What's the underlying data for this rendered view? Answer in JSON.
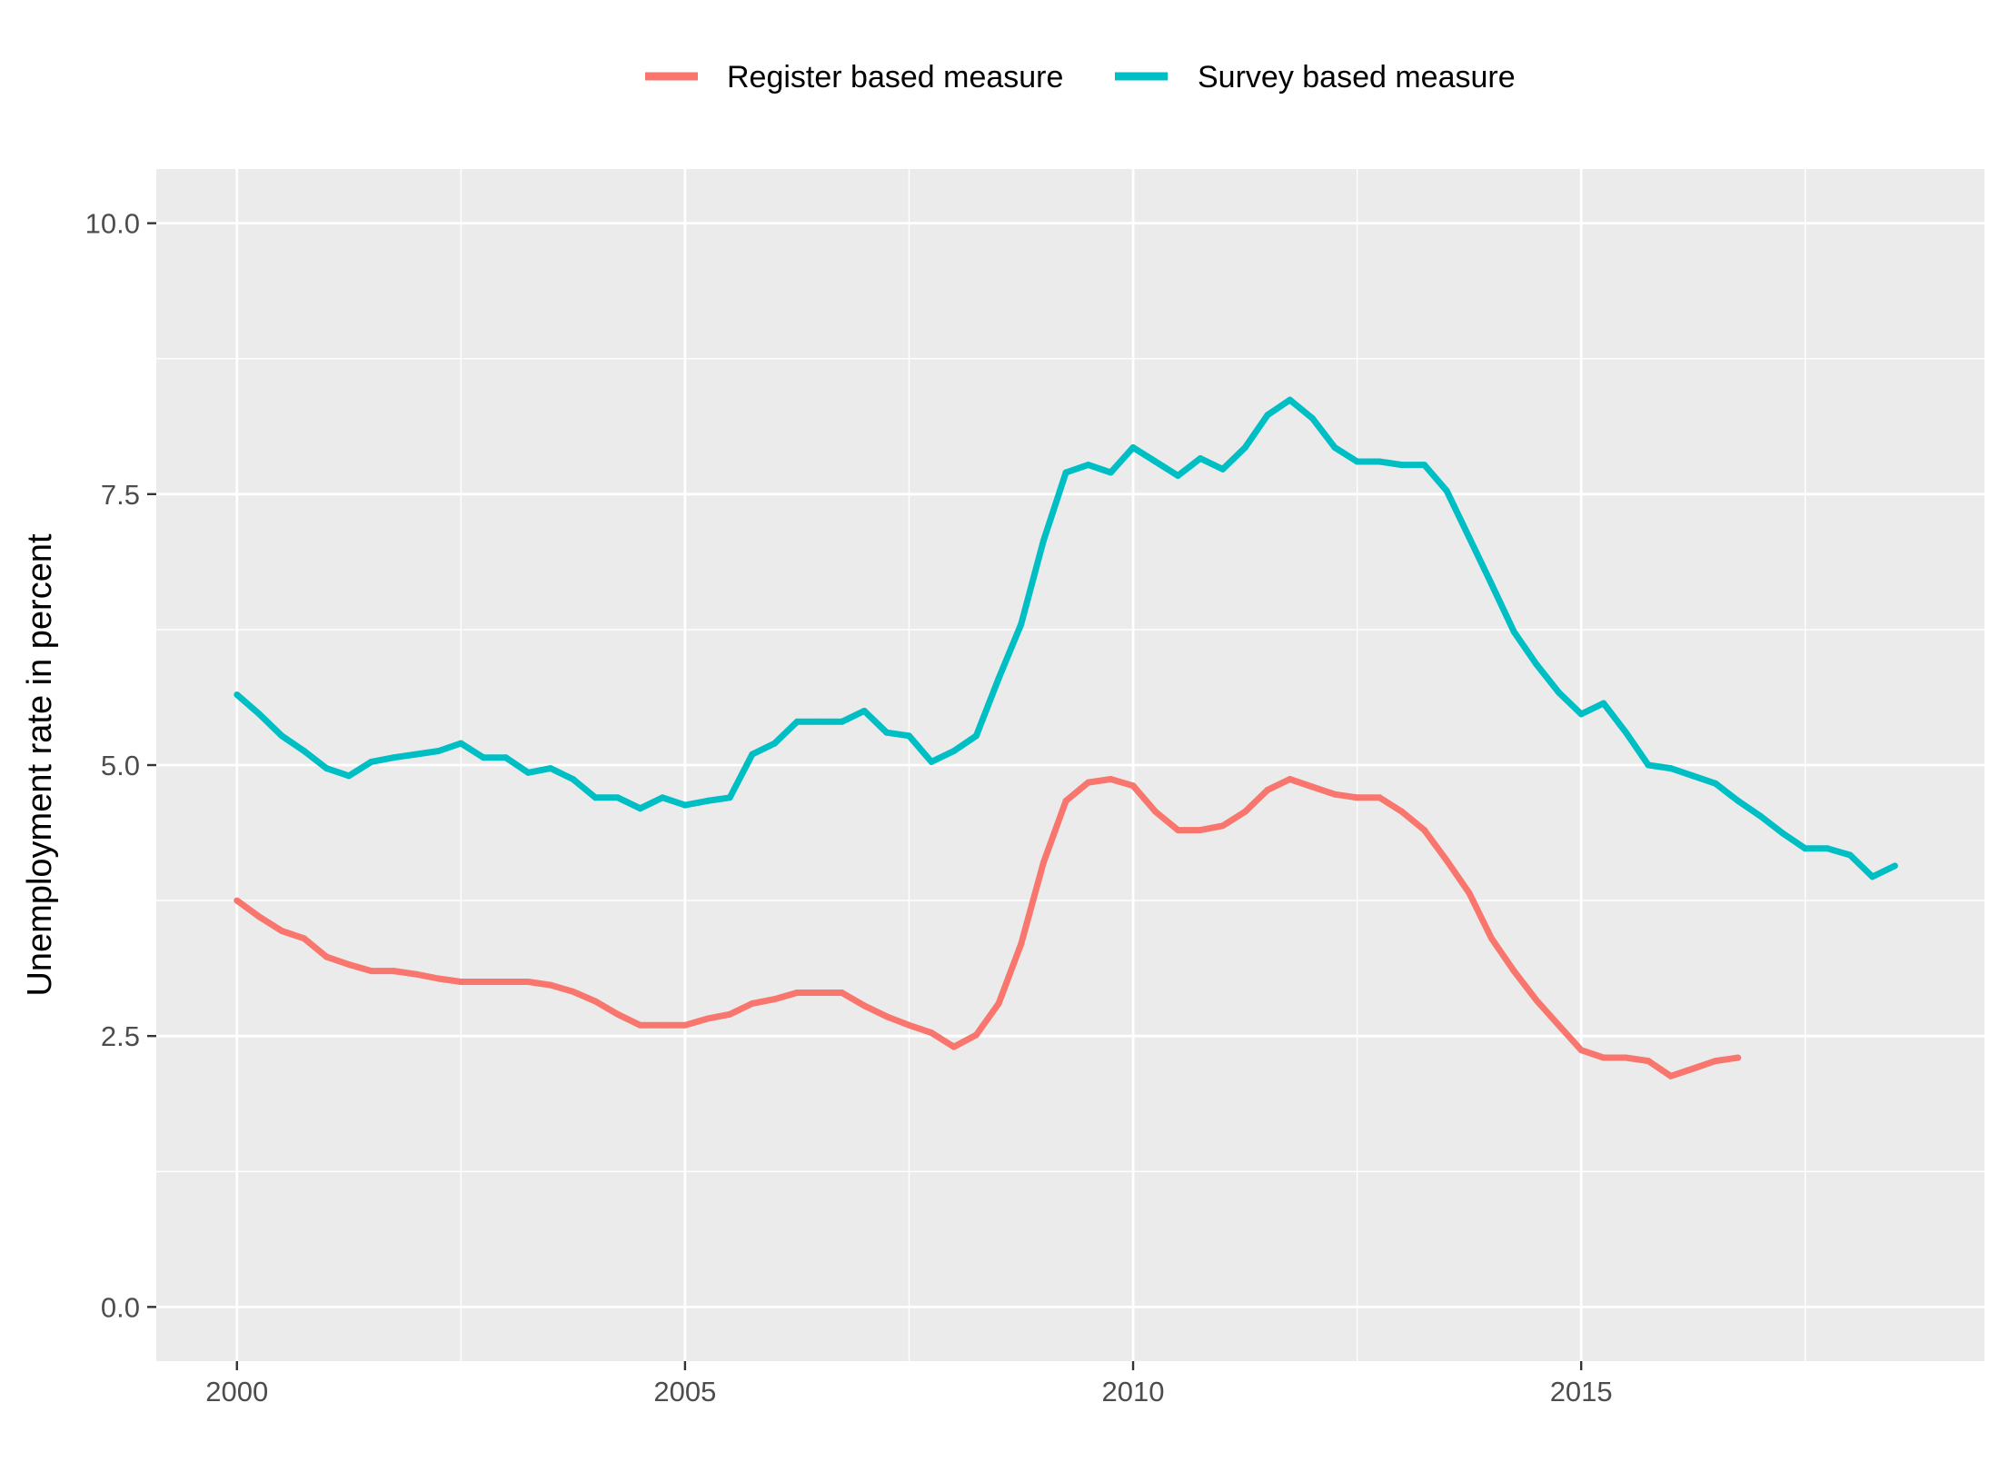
{
  "chart_data": {
    "type": "line",
    "title": "",
    "xlabel": "",
    "ylabel": "Unemployment rate in percent",
    "xlim": [
      1999.1,
      2019.5
    ],
    "ylim": [
      -0.5,
      10.5
    ],
    "x_ticks": [
      2000,
      2005,
      2010,
      2015
    ],
    "x_tick_labels": [
      "2000",
      "2005",
      "2010",
      "2015"
    ],
    "y_ticks": [
      0,
      2.5,
      5,
      7.5,
      10
    ],
    "y_tick_labels": [
      "0.0",
      "2.5",
      "5.0",
      "7.5",
      "10.0"
    ],
    "grid": true,
    "legend_position": "top",
    "series": [
      {
        "name": "Register based measure",
        "color": "#F8766D",
        "points": [
          [
            2000.0,
            3.75
          ],
          [
            2000.25,
            3.6
          ],
          [
            2000.5,
            3.47
          ],
          [
            2000.75,
            3.4
          ],
          [
            2001.0,
            3.23
          ],
          [
            2001.25,
            3.16
          ],
          [
            2001.5,
            3.1
          ],
          [
            2001.75,
            3.1
          ],
          [
            2002.0,
            3.07
          ],
          [
            2002.25,
            3.03
          ],
          [
            2002.5,
            3.0
          ],
          [
            2002.75,
            3.0
          ],
          [
            2003.0,
            3.0
          ],
          [
            2003.25,
            3.0
          ],
          [
            2003.5,
            2.97
          ],
          [
            2003.75,
            2.91
          ],
          [
            2004.0,
            2.82
          ],
          [
            2004.25,
            2.7
          ],
          [
            2004.5,
            2.6
          ],
          [
            2004.75,
            2.6
          ],
          [
            2005.0,
            2.6
          ],
          [
            2005.25,
            2.66
          ],
          [
            2005.5,
            2.7
          ],
          [
            2005.75,
            2.8
          ],
          [
            2006.0,
            2.84
          ],
          [
            2006.25,
            2.9
          ],
          [
            2006.5,
            2.9
          ],
          [
            2006.75,
            2.9
          ],
          [
            2007.0,
            2.78
          ],
          [
            2007.25,
            2.68
          ],
          [
            2007.5,
            2.6
          ],
          [
            2007.75,
            2.53
          ],
          [
            2008.0,
            2.4
          ],
          [
            2008.25,
            2.51
          ],
          [
            2008.5,
            2.8
          ],
          [
            2008.75,
            3.35
          ],
          [
            2009.0,
            4.1
          ],
          [
            2009.25,
            4.67
          ],
          [
            2009.5,
            4.84
          ],
          [
            2009.75,
            4.87
          ],
          [
            2010.0,
            4.81
          ],
          [
            2010.25,
            4.57
          ],
          [
            2010.5,
            4.4
          ],
          [
            2010.75,
            4.4
          ],
          [
            2011.0,
            4.44
          ],
          [
            2011.25,
            4.57
          ],
          [
            2011.5,
            4.77
          ],
          [
            2011.75,
            4.87
          ],
          [
            2012.0,
            4.8
          ],
          [
            2012.25,
            4.73
          ],
          [
            2012.5,
            4.7
          ],
          [
            2012.75,
            4.7
          ],
          [
            2013.0,
            4.57
          ],
          [
            2013.25,
            4.4
          ],
          [
            2013.5,
            4.12
          ],
          [
            2013.75,
            3.82
          ],
          [
            2014.0,
            3.4
          ],
          [
            2014.25,
            3.1
          ],
          [
            2014.5,
            2.83
          ],
          [
            2014.75,
            2.6
          ],
          [
            2015.0,
            2.37
          ],
          [
            2015.25,
            2.3
          ],
          [
            2015.5,
            2.3
          ],
          [
            2015.75,
            2.27
          ],
          [
            2016.0,
            2.13
          ],
          [
            2016.25,
            2.2
          ],
          [
            2016.5,
            2.27
          ],
          [
            2016.75,
            2.3
          ]
        ]
      },
      {
        "name": "Survey based measure",
        "color": "#00BFC4",
        "points": [
          [
            2000.0,
            5.65
          ],
          [
            2000.25,
            5.47
          ],
          [
            2000.5,
            5.27
          ],
          [
            2000.75,
            5.13
          ],
          [
            2001.0,
            4.97
          ],
          [
            2001.25,
            4.9
          ],
          [
            2001.5,
            5.03
          ],
          [
            2001.75,
            5.07
          ],
          [
            2002.0,
            5.1
          ],
          [
            2002.25,
            5.13
          ],
          [
            2002.5,
            5.2
          ],
          [
            2002.75,
            5.07
          ],
          [
            2003.0,
            5.07
          ],
          [
            2003.25,
            4.93
          ],
          [
            2003.5,
            4.97
          ],
          [
            2003.75,
            4.87
          ],
          [
            2004.0,
            4.7
          ],
          [
            2004.25,
            4.7
          ],
          [
            2004.5,
            4.6
          ],
          [
            2004.75,
            4.7
          ],
          [
            2005.0,
            4.63
          ],
          [
            2005.25,
            4.67
          ],
          [
            2005.5,
            4.7
          ],
          [
            2005.75,
            5.1
          ],
          [
            2006.0,
            5.2
          ],
          [
            2006.25,
            5.4
          ],
          [
            2006.5,
            5.4
          ],
          [
            2006.75,
            5.4
          ],
          [
            2007.0,
            5.5
          ],
          [
            2007.25,
            5.3
          ],
          [
            2007.5,
            5.27
          ],
          [
            2007.75,
            5.03
          ],
          [
            2008.0,
            5.13
          ],
          [
            2008.25,
            5.27
          ],
          [
            2008.5,
            5.8
          ],
          [
            2008.75,
            6.3
          ],
          [
            2009.0,
            7.07
          ],
          [
            2009.25,
            7.7
          ],
          [
            2009.5,
            7.77
          ],
          [
            2009.75,
            7.7
          ],
          [
            2010.0,
            7.93
          ],
          [
            2010.25,
            7.8
          ],
          [
            2010.5,
            7.67
          ],
          [
            2010.75,
            7.83
          ],
          [
            2011.0,
            7.73
          ],
          [
            2011.25,
            7.93
          ],
          [
            2011.5,
            8.23
          ],
          [
            2011.75,
            8.37
          ],
          [
            2012.0,
            8.2
          ],
          [
            2012.25,
            7.93
          ],
          [
            2012.5,
            7.8
          ],
          [
            2012.75,
            7.8
          ],
          [
            2013.0,
            7.77
          ],
          [
            2013.25,
            7.77
          ],
          [
            2013.5,
            7.53
          ],
          [
            2013.75,
            7.1
          ],
          [
            2014.0,
            6.67
          ],
          [
            2014.25,
            6.23
          ],
          [
            2014.5,
            5.93
          ],
          [
            2014.75,
            5.67
          ],
          [
            2015.0,
            5.47
          ],
          [
            2015.25,
            5.57
          ],
          [
            2015.5,
            5.3
          ],
          [
            2015.75,
            5.0
          ],
          [
            2016.0,
            4.97
          ],
          [
            2016.25,
            4.9
          ],
          [
            2016.5,
            4.83
          ],
          [
            2016.75,
            4.67
          ],
          [
            2017.0,
            4.53
          ],
          [
            2017.25,
            4.37
          ],
          [
            2017.5,
            4.23
          ],
          [
            2017.75,
            4.23
          ],
          [
            2018.0,
            4.17
          ],
          [
            2018.25,
            3.97
          ],
          [
            2018.5,
            4.07
          ]
        ]
      }
    ]
  }
}
